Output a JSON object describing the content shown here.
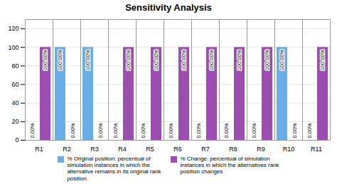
{
  "chart_data": {
    "type": "bar",
    "title": "Sensitivity Analysis",
    "categories": [
      "R1",
      "R2",
      "R3",
      "R4",
      "R5",
      "R6",
      "R7",
      "R8",
      "R9",
      "R10",
      "R11"
    ],
    "series": [
      {
        "name": "% Original position: percentual of\nsimulation instances in which the\nalternative remains in its original rank\nposition",
        "color": "#6aaee8",
        "values": [
          0.0,
          100.0,
          100.0,
          0.0,
          0.0,
          0.0,
          0.0,
          0.0,
          0.0,
          100.0,
          0.0
        ],
        "value_labels": [
          "0.00%",
          "100.00%",
          "100.00%",
          "0.00%",
          "0.00%",
          "0.00%",
          "0.00%",
          "0.00%",
          "0.00%",
          "100.00%",
          "0.00%"
        ]
      },
      {
        "name": "% Change: percentual of simulation\ninstances in which the alternatives rank\nposition changes",
        "color": "#9B4DB0",
        "values": [
          100.0,
          0.0,
          0.0,
          100.0,
          100.0,
          100.0,
          100.0,
          100.0,
          100.0,
          0.0,
          100.0
        ],
        "value_labels": [
          "100.00%",
          "0.00%",
          "0.00%",
          "100.00%",
          "100.00%",
          "100.00%",
          "100.00%",
          "100.00%",
          "100.00%",
          "0.00%",
          "100.00%"
        ]
      }
    ],
    "ylim": [
      0,
      130
    ],
    "yticks": [
      0,
      20,
      40,
      60,
      80,
      100,
      120
    ],
    "grid": true,
    "data_labels": true,
    "legend": "bottom"
  }
}
